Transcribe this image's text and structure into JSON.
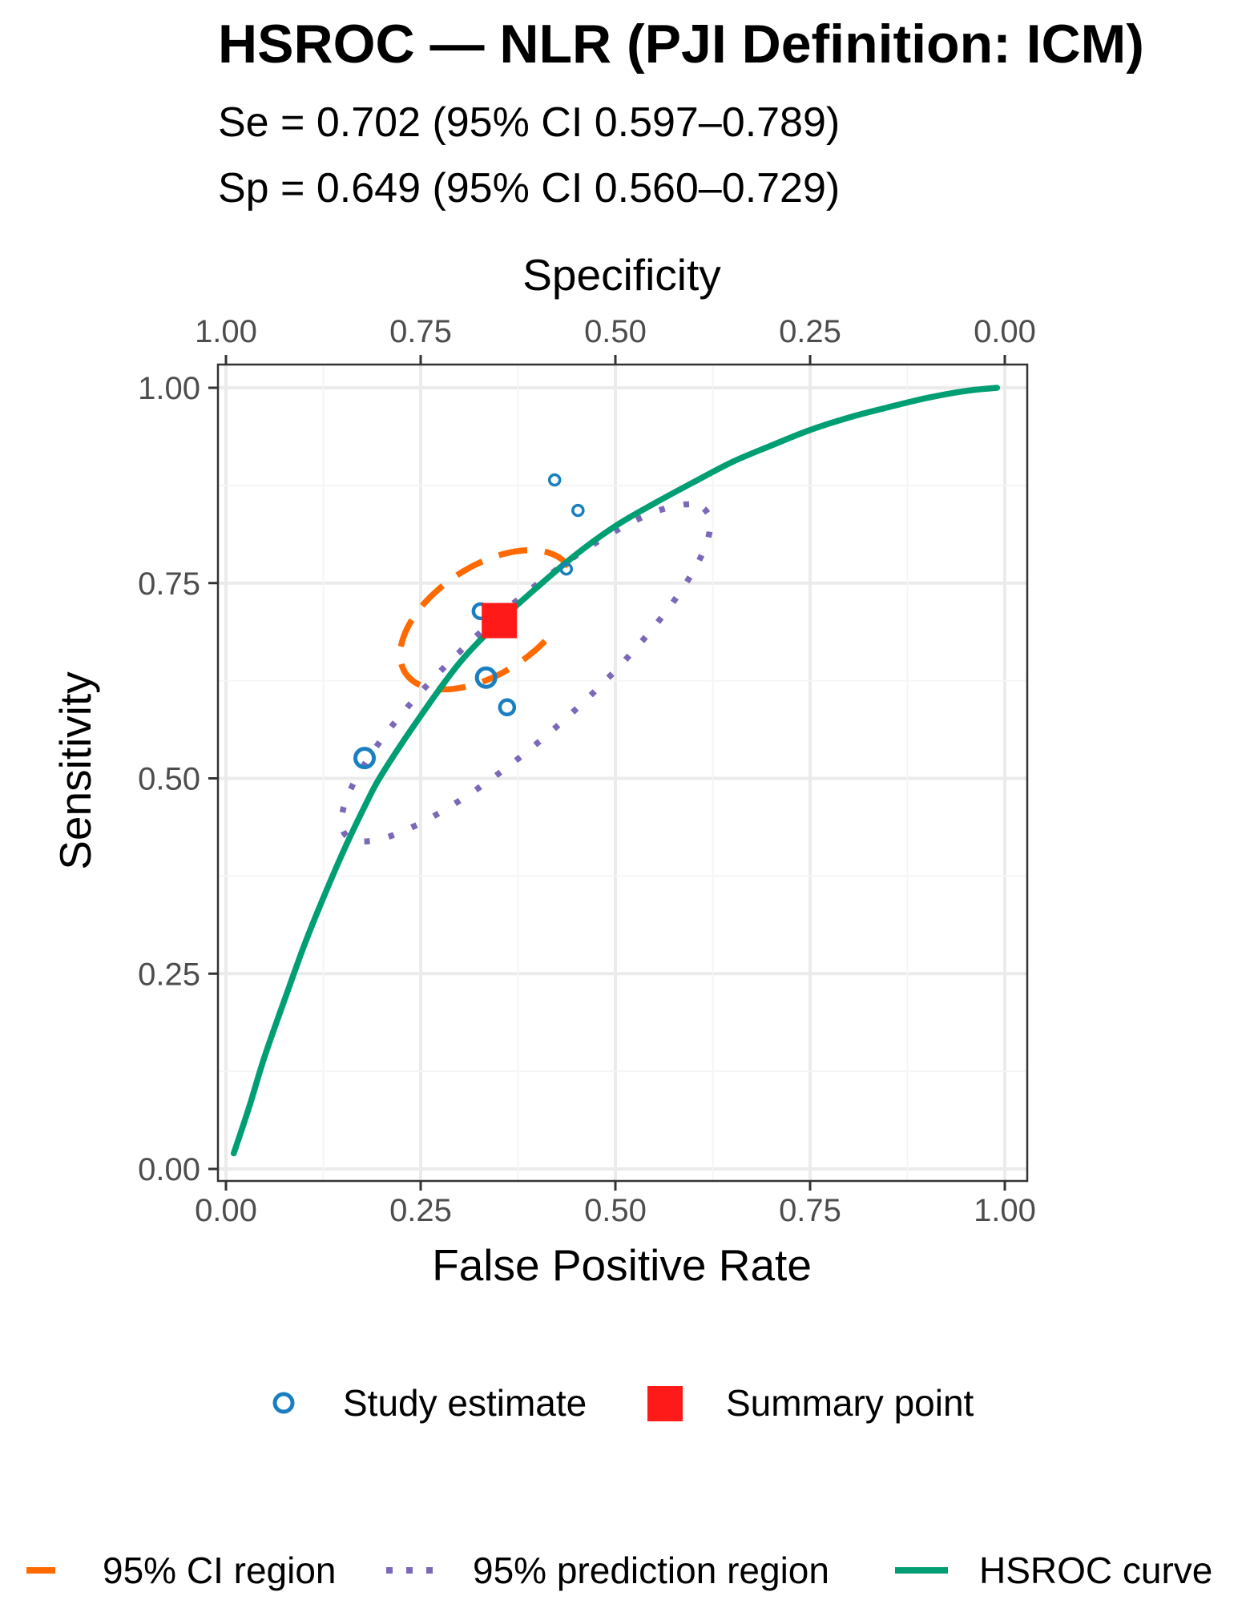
{
  "chart_data": {
    "type": "scatter",
    "title": "HSROC — NLR (PJI Definition: ICM)",
    "subtitle_lines": [
      "Se = 0.702 (95% CI 0.597–0.789)",
      "Sp = 0.649 (95% CI 0.560–0.729)"
    ],
    "xlabel": "False Positive Rate",
    "ylabel": "Sensitivity",
    "top_axis_label": "Specificity",
    "xlim": [
      0,
      1
    ],
    "ylim": [
      0,
      1
    ],
    "x_ticks": [
      0,
      0.25,
      0.5,
      0.75,
      1
    ],
    "x_tick_labels": [
      "0.00",
      "0.25",
      "0.50",
      "0.75",
      "1.00"
    ],
    "y_ticks": [
      0,
      0.25,
      0.5,
      0.75,
      1
    ],
    "y_tick_labels": [
      "0.00",
      "0.25",
      "0.50",
      "0.75",
      "1.00"
    ],
    "top_tick_labels": [
      "1.00",
      "0.75",
      "0.50",
      "0.25",
      "0.00"
    ],
    "grid": true,
    "legend_position": "bottom",
    "summary_point": {
      "fpr": 0.351,
      "sensitivity": 0.702
    },
    "study_estimates": [
      {
        "fpr": 0.422,
        "sensitivity": 0.882,
        "weight": "small"
      },
      {
        "fpr": 0.452,
        "sensitivity": 0.843,
        "weight": "small"
      },
      {
        "fpr": 0.437,
        "sensitivity": 0.768,
        "weight": "small"
      },
      {
        "fpr": 0.327,
        "sensitivity": 0.714,
        "weight": "medium"
      },
      {
        "fpr": 0.334,
        "sensitivity": 0.629,
        "weight": "large"
      },
      {
        "fpr": 0.361,
        "sensitivity": 0.591,
        "weight": "medium"
      },
      {
        "fpr": 0.178,
        "sensitivity": 0.526,
        "weight": "large"
      }
    ],
    "hsroc_curve": {
      "x": [
        0.01,
        0.03,
        0.05,
        0.08,
        0.1,
        0.12,
        0.15,
        0.18,
        0.2,
        0.25,
        0.3,
        0.35,
        0.4,
        0.45,
        0.5,
        0.55,
        0.6,
        0.65,
        0.7,
        0.75,
        0.8,
        0.85,
        0.9,
        0.95,
        0.99
      ],
      "y": [
        0.02,
        0.08,
        0.145,
        0.23,
        0.285,
        0.335,
        0.405,
        0.468,
        0.505,
        0.58,
        0.648,
        0.7,
        0.745,
        0.787,
        0.823,
        0.852,
        0.879,
        0.905,
        0.926,
        0.946,
        0.962,
        0.975,
        0.987,
        0.996,
        1.0
      ]
    },
    "ci_region": {
      "center": [
        0.335,
        0.703
      ],
      "x_radius": 0.085,
      "y_radius": 0.085,
      "axis_angle_deg": 33,
      "ratio": 0.55
    },
    "prediction_region": {
      "center": [
        0.385,
        0.635
      ],
      "x_radius": 0.215,
      "y_radius": 0.26,
      "axis_angle_deg": 42,
      "ratio": 0.25
    },
    "colors": {
      "study": "#1a7fc1",
      "summary": "#ff1a1a",
      "ci_region": "#ff6a00",
      "prediction_region": "#7b68b8",
      "hsroc_curve": "#009e73",
      "grid": "#ebebeb",
      "panel_border": "#333333"
    },
    "legend": {
      "study_label": "Study estimate",
      "summary_label": "Summary point",
      "ci_label": "95% CI region",
      "prediction_label": "95% prediction region",
      "curve_label": "HSROC curve"
    }
  }
}
